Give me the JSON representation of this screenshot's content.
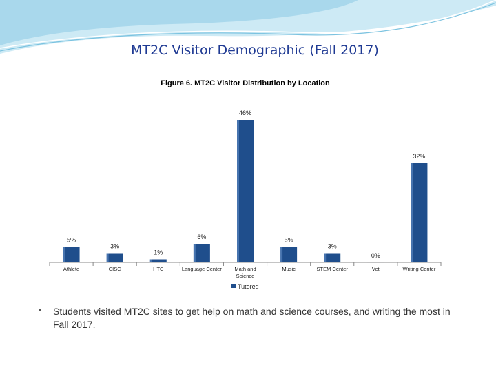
{
  "slide": {
    "title": "MT2C Visitor Demographic (Fall 2017)",
    "bullet": "Students visited MT2C sites to get help on math and science courses, and writing the most in Fall 2017."
  },
  "colors": {
    "title": "#1f3a93",
    "bar": "#1f4e8c",
    "bar_highlight": "#6f9ad1",
    "swoosh": "#a9d8ec"
  },
  "chart_data": {
    "type": "bar",
    "title": "Figure 6. MT2C Visitor Distribution by Location",
    "categories": [
      "Athlete",
      "CISC",
      "HTC",
      "Language Center",
      "Math and Science",
      "Music",
      "STEM Center",
      "Vet",
      "Writing Center"
    ],
    "series": [
      {
        "name": "Tutored",
        "values": [
          5,
          3,
          1,
          6,
          46,
          5,
          3,
          0,
          32
        ]
      }
    ],
    "data_labels": [
      "5%",
      "3%",
      "1%",
      "6%",
      "46%",
      "5%",
      "3%",
      "0%",
      "32%"
    ],
    "ylim": [
      0,
      46
    ],
    "legend": "bottom",
    "grid": false
  }
}
